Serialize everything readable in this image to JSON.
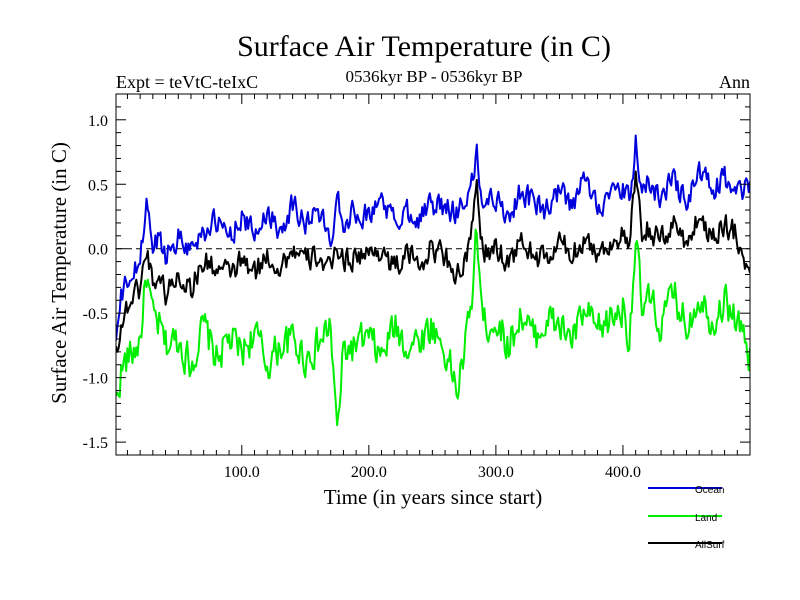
{
  "chart_data": {
    "type": "line",
    "title": "Surface Air Temperature (in C)",
    "subtitle_left": "Expt = teVtC-teIxC",
    "subtitle_center": "0536kyr BP - 0536kyr BP",
    "subtitle_right": "Ann",
    "xlabel": "Time (in years since start)",
    "ylabel": "Surface Air Temperature (in C)",
    "xlim": [
      1,
      500
    ],
    "ylim": [
      -1.6,
      1.2
    ],
    "x_ticks": [
      {
        "value": 100,
        "label": "100.0"
      },
      {
        "value": 200,
        "label": "200.0"
      },
      {
        "value": 300,
        "label": "300.0"
      },
      {
        "value": 400,
        "label": "400.0"
      }
    ],
    "y_ticks": [
      {
        "value": 1.0,
        "label": "1.0"
      },
      {
        "value": 0.5,
        "label": "0.5"
      },
      {
        "value": 0.0,
        "label": "0.0"
      },
      {
        "value": -0.5,
        "label": "-0.5"
      },
      {
        "value": -1.0,
        "label": "-1.0"
      },
      {
        "value": -1.5,
        "label": "-1.5"
      }
    ],
    "zero_line": 0.0,
    "series": [
      {
        "name": "Ocean",
        "color": "#0000dd",
        "x": [
          1,
          5,
          10,
          15,
          20,
          25,
          30,
          35,
          40,
          50,
          60,
          70,
          80,
          90,
          100,
          110,
          120,
          130,
          140,
          150,
          160,
          170,
          175,
          180,
          190,
          200,
          210,
          220,
          230,
          240,
          250,
          260,
          270,
          280,
          285,
          290,
          300,
          310,
          320,
          330,
          340,
          350,
          360,
          370,
          380,
          390,
          400,
          405,
          410,
          415,
          420,
          430,
          440,
          450,
          460,
          470,
          480,
          490,
          500
        ],
        "values": [
          -0.72,
          -0.4,
          -0.25,
          -0.2,
          -0.1,
          0.38,
          0.0,
          0.1,
          -0.05,
          0.1,
          0.0,
          0.15,
          0.2,
          0.1,
          0.25,
          0.1,
          0.3,
          0.15,
          0.35,
          0.2,
          0.3,
          0.05,
          0.45,
          0.2,
          0.3,
          0.25,
          0.4,
          0.2,
          0.3,
          0.25,
          0.35,
          0.3,
          0.3,
          0.45,
          0.7,
          0.35,
          0.4,
          0.25,
          0.45,
          0.35,
          0.3,
          0.45,
          0.3,
          0.55,
          0.35,
          0.4,
          0.45,
          0.35,
          0.82,
          0.45,
          0.5,
          0.4,
          0.55,
          0.35,
          0.6,
          0.45,
          0.55,
          0.4,
          0.52
        ]
      },
      {
        "name": "Land",
        "color": "#00ee00",
        "x": [
          1,
          5,
          10,
          15,
          20,
          25,
          30,
          35,
          40,
          50,
          60,
          70,
          80,
          90,
          100,
          110,
          120,
          130,
          140,
          150,
          160,
          170,
          175,
          180,
          190,
          200,
          210,
          220,
          230,
          240,
          250,
          260,
          270,
          280,
          285,
          290,
          300,
          310,
          320,
          330,
          340,
          350,
          360,
          370,
          380,
          390,
          400,
          405,
          410,
          415,
          420,
          430,
          440,
          450,
          460,
          470,
          480,
          490,
          500
        ],
        "values": [
          -1.2,
          -0.95,
          -0.85,
          -0.8,
          -0.7,
          -0.2,
          -0.55,
          -0.6,
          -0.75,
          -0.7,
          -0.9,
          -0.6,
          -0.85,
          -0.7,
          -0.8,
          -0.65,
          -0.9,
          -0.75,
          -0.7,
          -0.85,
          -0.75,
          -0.6,
          -1.45,
          -0.8,
          -0.75,
          -0.7,
          -0.85,
          -0.6,
          -0.75,
          -0.7,
          -0.6,
          -0.8,
          -1.1,
          -0.5,
          0.15,
          -0.6,
          -0.55,
          -0.75,
          -0.5,
          -0.7,
          -0.55,
          -0.6,
          -0.7,
          -0.5,
          -0.65,
          -0.55,
          -0.45,
          -0.7,
          0.1,
          -0.5,
          -0.4,
          -0.6,
          -0.35,
          -0.6,
          -0.35,
          -0.55,
          -0.4,
          -0.55,
          -0.85
        ]
      },
      {
        "name": "AllSurf",
        "color": "#000000",
        "x": [
          1,
          5,
          10,
          15,
          20,
          25,
          30,
          35,
          40,
          50,
          60,
          70,
          80,
          90,
          100,
          110,
          120,
          130,
          140,
          150,
          160,
          170,
          175,
          180,
          190,
          200,
          210,
          220,
          230,
          240,
          250,
          260,
          270,
          280,
          285,
          290,
          300,
          310,
          320,
          330,
          340,
          350,
          360,
          370,
          380,
          390,
          400,
          405,
          410,
          415,
          420,
          430,
          440,
          450,
          460,
          470,
          480,
          490,
          500
        ],
        "values": [
          -0.78,
          -0.6,
          -0.45,
          -0.35,
          -0.3,
          0.0,
          -0.25,
          -0.2,
          -0.35,
          -0.2,
          -0.3,
          -0.1,
          -0.15,
          -0.2,
          -0.1,
          -0.2,
          -0.05,
          -0.15,
          0.0,
          -0.1,
          -0.05,
          -0.2,
          0.05,
          -0.1,
          -0.05,
          -0.05,
          0.0,
          -0.15,
          -0.05,
          -0.1,
          0.0,
          -0.05,
          -0.2,
          0.0,
          0.5,
          -0.05,
          0.0,
          -0.1,
          0.05,
          -0.05,
          -0.1,
          0.05,
          -0.05,
          0.1,
          -0.05,
          0.05,
          0.1,
          0.0,
          0.55,
          0.1,
          0.15,
          0.05,
          0.2,
          0.05,
          0.25,
          0.1,
          0.2,
          0.1,
          -0.2
        ]
      }
    ],
    "legend": {
      "placement": "bottom-right",
      "entries": [
        {
          "label": "Ocean",
          "color": "#0000dd"
        },
        {
          "label": "Land",
          "color": "#00ee00"
        },
        {
          "label": "AllSurf",
          "color": "#000000"
        }
      ]
    }
  }
}
